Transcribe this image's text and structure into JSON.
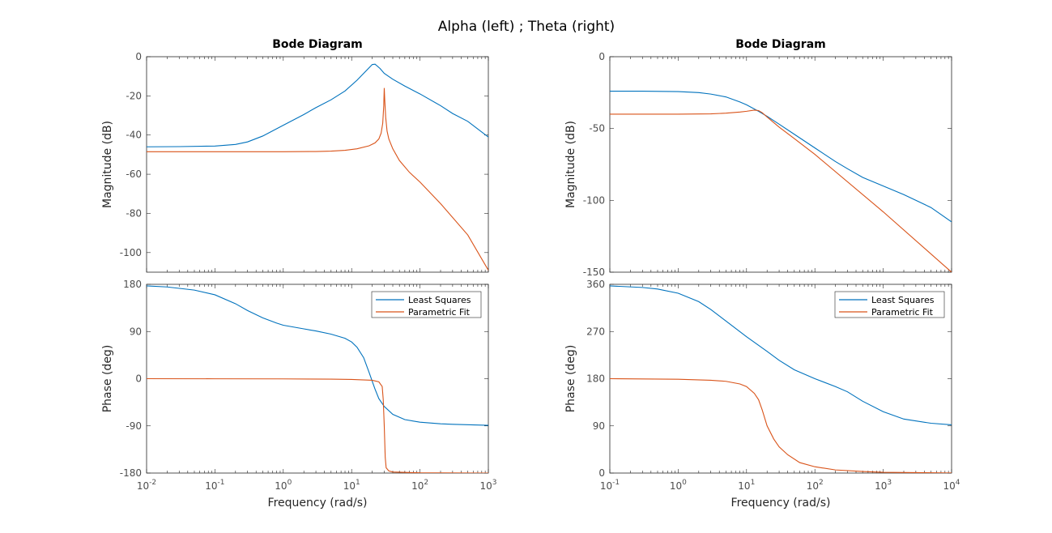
{
  "figure": {
    "suptitle": "Alpha (left) ; Theta (right)"
  },
  "colors": {
    "series_1": "#0072BD",
    "series_2": "#D95319"
  },
  "chart_data": [
    {
      "type": "line",
      "panel": "left-magnitude",
      "title": "Bode Diagram",
      "xlabel": "",
      "ylabel": "Magnitude (dB)",
      "xscale": "log",
      "xlim": [
        0.01,
        1000
      ],
      "ylim": [
        -110,
        0
      ],
      "yticks": [
        0,
        -20,
        -40,
        -60,
        -80,
        -100
      ],
      "series": [
        {
          "name": "Least Squares",
          "x": [
            0.01,
            0.03,
            0.1,
            0.2,
            0.3,
            0.5,
            1,
            2,
            3,
            5,
            8,
            12,
            16,
            20,
            22,
            26,
            30,
            40,
            60,
            100,
            200,
            300,
            500,
            1000
          ],
          "y": [
            -46,
            -45.9,
            -45.6,
            -44.8,
            -43.5,
            -40.5,
            -35,
            -29.5,
            -26,
            -22,
            -17.5,
            -12,
            -7.5,
            -4,
            -3.8,
            -6,
            -8.5,
            -11.5,
            -15,
            -19,
            -25,
            -29,
            -33,
            -41
          ]
        },
        {
          "name": "Parametric Fit",
          "x": [
            0.01,
            0.1,
            1,
            3,
            5,
            8,
            12,
            18,
            22,
            25,
            27,
            28.5,
            29.5,
            30,
            30.5,
            31.5,
            33,
            35,
            40,
            50,
            70,
            100,
            200,
            500,
            1000
          ],
          "y": [
            -48.5,
            -48.5,
            -48.5,
            -48.4,
            -48.2,
            -47.8,
            -47,
            -45.5,
            -44,
            -42,
            -39,
            -34,
            -25,
            -16,
            -22,
            -31,
            -38,
            -42,
            -47,
            -53,
            -59,
            -64,
            -75,
            -91,
            -109
          ]
        }
      ]
    },
    {
      "type": "line",
      "panel": "left-phase",
      "title": "",
      "xlabel": "Frequency  (rad/s)",
      "ylabel": "Phase (deg)",
      "xscale": "log",
      "xlim": [
        0.01,
        1000
      ],
      "ylim": [
        -180,
        180
      ],
      "xticks": [
        0.01,
        0.1,
        1,
        10,
        100,
        1000
      ],
      "xtick_bases": [
        "10",
        "10",
        "10",
        "10",
        "10",
        "10"
      ],
      "xtick_exponents": [
        "-2",
        "-1",
        "0",
        "1",
        "2",
        "3"
      ],
      "yticks": [
        180,
        90,
        0,
        -90,
        -180
      ],
      "legend": {
        "location": "top-right",
        "entries": [
          "Least Squares",
          "Parametric Fit"
        ]
      },
      "series": [
        {
          "name": "Least Squares",
          "x": [
            0.01,
            0.02,
            0.05,
            0.1,
            0.2,
            0.3,
            0.5,
            0.8,
            1,
            2,
            3,
            5,
            8,
            10,
            12,
            15,
            18,
            20,
            22,
            25,
            30,
            40,
            60,
            100,
            200,
            300,
            1000
          ],
          "y": [
            177,
            175,
            169,
            160,
            143,
            130,
            116,
            106,
            102,
            95,
            91,
            85,
            77,
            70,
            60,
            40,
            12,
            -5,
            -20,
            -38,
            -53,
            -68,
            -78,
            -83,
            -86,
            -87,
            -89
          ]
        },
        {
          "name": "Parametric Fit",
          "x": [
            0.01,
            0.1,
            1,
            5,
            10,
            20,
            25,
            28,
            29,
            30,
            31,
            32,
            35,
            40,
            100,
            1000
          ],
          "y": [
            0,
            -0.2,
            -0.4,
            -0.9,
            -1.5,
            -3,
            -6,
            -15,
            -40,
            -90,
            -150,
            -170,
            -176,
            -178,
            -179.5,
            -180
          ]
        }
      ]
    },
    {
      "type": "line",
      "panel": "right-magnitude",
      "title": "Bode Diagram",
      "xlabel": "",
      "ylabel": "Magnitude (dB)",
      "xscale": "log",
      "xlim": [
        0.1,
        10000
      ],
      "ylim": [
        -150,
        0
      ],
      "yticks": [
        0,
        -50,
        -100,
        -150
      ],
      "series": [
        {
          "name": "Least Squares",
          "x": [
            0.1,
            0.3,
            1,
            2,
            3,
            5,
            8,
            10,
            15,
            20,
            30,
            50,
            100,
            200,
            300,
            500,
            1000,
            2000,
            5000,
            10000
          ],
          "y": [
            -24,
            -24,
            -24.3,
            -25,
            -26,
            -28,
            -31.5,
            -33.5,
            -38,
            -41.5,
            -47,
            -54,
            -63.5,
            -73,
            -78,
            -84,
            -90,
            -96,
            -105,
            -115
          ]
        },
        {
          "name": "Parametric Fit",
          "x": [
            0.1,
            1,
            3,
            5,
            8,
            10,
            13,
            15,
            17,
            20,
            30,
            50,
            100,
            1000,
            10000
          ],
          "y": [
            -40,
            -40,
            -39.8,
            -39.3,
            -38.5,
            -38,
            -37.2,
            -37.5,
            -39,
            -42,
            -49,
            -57,
            -68,
            -108,
            -150
          ]
        }
      ]
    },
    {
      "type": "line",
      "panel": "right-phase",
      "title": "",
      "xlabel": "Frequency  (rad/s)",
      "ylabel": "Phase (deg)",
      "xscale": "log",
      "xlim": [
        0.1,
        10000
      ],
      "ylim": [
        0,
        360
      ],
      "xticks": [
        0.1,
        1,
        10,
        100,
        1000,
        10000
      ],
      "xtick_bases": [
        "10",
        "10",
        "10",
        "10",
        "10",
        "10"
      ],
      "xtick_exponents": [
        "-1",
        "0",
        "1",
        "2",
        "3",
        "4"
      ],
      "yticks": [
        360,
        270,
        180,
        90,
        0
      ],
      "legend": {
        "location": "top-right",
        "entries": [
          "Least Squares",
          "Parametric Fit"
        ]
      },
      "series": [
        {
          "name": "Least Squares",
          "x": [
            0.1,
            0.3,
            0.5,
            1,
            2,
            3,
            5,
            10,
            20,
            30,
            50,
            100,
            200,
            300,
            500,
            1000,
            2000,
            5000,
            10000
          ],
          "y": [
            357,
            354,
            351,
            343,
            327,
            312,
            290,
            260,
            232,
            215,
            197,
            180,
            165,
            155,
            137,
            117,
            103,
            95,
            92
          ]
        },
        {
          "name": "Parametric Fit",
          "x": [
            0.1,
            1,
            3,
            5,
            8,
            10,
            13,
            15,
            17,
            20,
            25,
            30,
            40,
            60,
            100,
            200,
            500,
            1000,
            10000
          ],
          "y": [
            180,
            179,
            177,
            175,
            170,
            165,
            152,
            140,
            120,
            90,
            65,
            50,
            35,
            20,
            12,
            6,
            3,
            1.5,
            0.2
          ]
        }
      ]
    }
  ]
}
